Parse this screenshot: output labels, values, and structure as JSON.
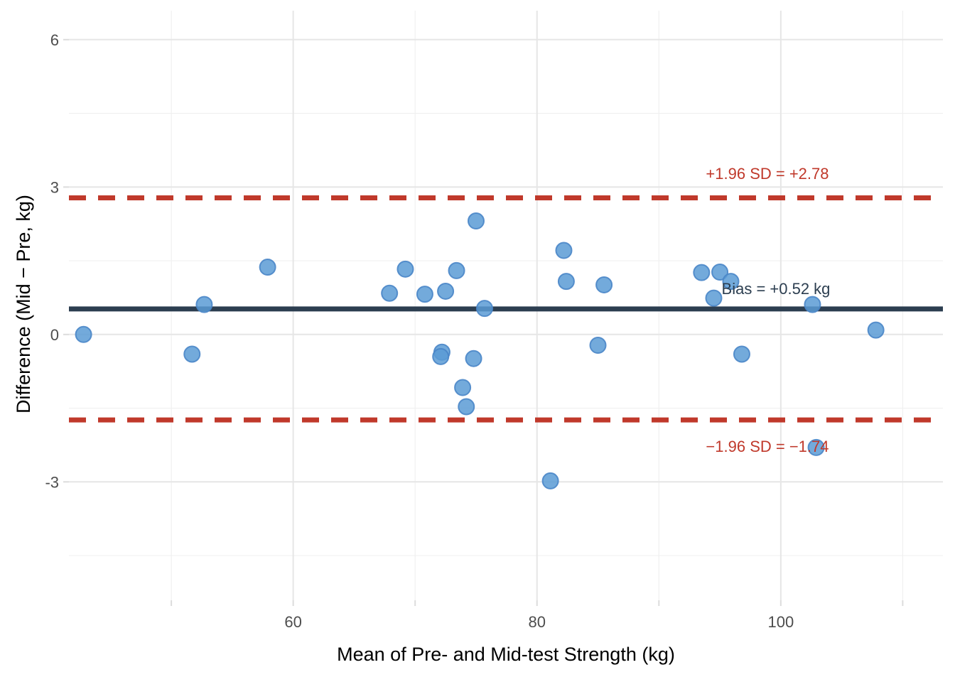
{
  "chart_data": {
    "type": "scatter",
    "title": "",
    "xlabel": "Mean of Pre- and Mid-test Strength (kg)",
    "ylabel": "Difference (Mid − Pre, kg)",
    "xlim": [
      41.6,
      113.3
    ],
    "ylim": [
      -5.41,
      6.59
    ],
    "x_major_ticks": [
      60,
      80,
      100
    ],
    "x_minor_ticks": [
      50,
      70,
      90,
      110
    ],
    "y_major_ticks": [
      -3,
      0,
      3,
      6
    ],
    "y_minor_ticks": [
      -4.5,
      -1.5,
      1.5,
      4.5
    ],
    "x_tick_labels": [
      "60",
      "80",
      "100"
    ],
    "y_tick_labels": [
      "-3",
      "0",
      "3",
      "6"
    ],
    "grid": true,
    "legend": false,
    "points": [
      {
        "x": 42.8,
        "y": 0.0
      },
      {
        "x": 51.7,
        "y": -0.4
      },
      {
        "x": 52.7,
        "y": 0.61
      },
      {
        "x": 57.9,
        "y": 1.37
      },
      {
        "x": 67.9,
        "y": 0.84
      },
      {
        "x": 69.2,
        "y": 1.33
      },
      {
        "x": 70.8,
        "y": 0.82
      },
      {
        "x": 72.5,
        "y": 0.88
      },
      {
        "x": 73.4,
        "y": 1.3
      },
      {
        "x": 75.0,
        "y": 2.31
      },
      {
        "x": 75.7,
        "y": 0.53
      },
      {
        "x": 72.2,
        "y": -0.36
      },
      {
        "x": 72.1,
        "y": -0.45
      },
      {
        "x": 74.8,
        "y": -0.49
      },
      {
        "x": 73.9,
        "y": -1.08
      },
      {
        "x": 74.2,
        "y": -1.47
      },
      {
        "x": 81.1,
        "y": -2.98
      },
      {
        "x": 82.2,
        "y": 1.71
      },
      {
        "x": 82.4,
        "y": 1.08
      },
      {
        "x": 85.5,
        "y": 1.01
      },
      {
        "x": 85.0,
        "y": -0.22
      },
      {
        "x": 93.5,
        "y": 1.26
      },
      {
        "x": 95.0,
        "y": 1.27
      },
      {
        "x": 95.9,
        "y": 1.08
      },
      {
        "x": 94.5,
        "y": 0.74
      },
      {
        "x": 96.8,
        "y": -0.4
      },
      {
        "x": 102.6,
        "y": 0.61
      },
      {
        "x": 102.9,
        "y": -2.3
      },
      {
        "x": 107.8,
        "y": 0.09
      }
    ],
    "reference_lines": {
      "bias": {
        "value": 0.52,
        "style": "solid",
        "color": "#2C3E50"
      },
      "upper_loa": {
        "value": 2.78,
        "style": "dashed",
        "color": "#C0392B"
      },
      "lower_loa": {
        "value": -1.74,
        "style": "dashed",
        "color": "#C0392B"
      }
    },
    "annotations": {
      "upper": {
        "label": "+1.96 SD = +2.78",
        "x": 98.9,
        "y": 3.28,
        "color": "#C0392B"
      },
      "bias": {
        "label": "Bias = +0.52 kg",
        "x": 99.6,
        "y": 0.94,
        "color": "#2C3E50"
      },
      "lower": {
        "label": "−1.96 SD = −1.74",
        "x": 98.9,
        "y": -2.27,
        "color": "#C0392B"
      }
    },
    "colors": {
      "point_fill": "#5B9BD5",
      "point_stroke": "#4A86C8",
      "bias_line": "#2C3E50",
      "loa_line": "#C0392B",
      "tick_label": "#4d4d4d",
      "axis_title": "#000000",
      "grid_major": "#E6E6E6",
      "grid_minor": "#F0F0F0",
      "tick_mark": "#DCDCDC",
      "background": "#FFFFFF"
    }
  }
}
